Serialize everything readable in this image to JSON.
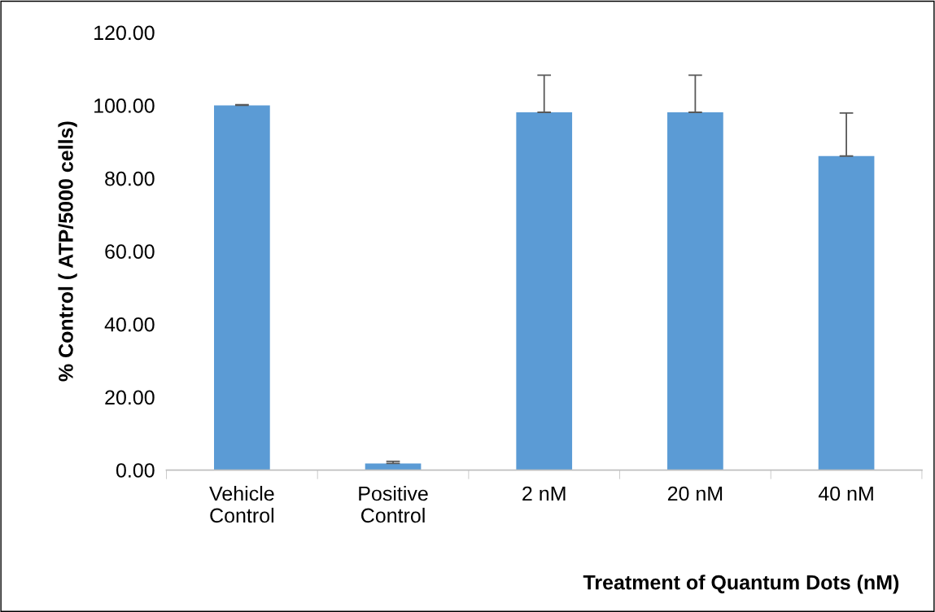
{
  "chart_data": {
    "type": "bar",
    "ylabel": "% Control ( ATP/5000 cells)",
    "xlabel": "Treatment of Quantum Dots (nM)",
    "categories": [
      "Vehicle\nControl",
      "Positive\nControl",
      "2 nM",
      "20 nM",
      "40 nM"
    ],
    "values": [
      100.0,
      1.8,
      98.1,
      98.1,
      86.1
    ],
    "errors": [
      [
        100.0,
        100.2
      ],
      [
        1.8,
        2.4
      ],
      [
        98.1,
        108.3
      ],
      [
        98.1,
        108.3
      ],
      [
        86.1,
        97.9
      ]
    ],
    "color": "#5b9bd5",
    "ylim": [
      0,
      120
    ],
    "yticks": [
      {
        "value": 0,
        "label": "0.00"
      },
      {
        "value": 20,
        "label": "20.00"
      },
      {
        "value": 40,
        "label": "40.00"
      },
      {
        "value": 60,
        "label": "60.00"
      },
      {
        "value": 80,
        "label": "80.00"
      },
      {
        "value": 100,
        "label": "100.00"
      },
      {
        "value": 120,
        "label": "120.00"
      }
    ],
    "grid": false,
    "legend": false
  }
}
